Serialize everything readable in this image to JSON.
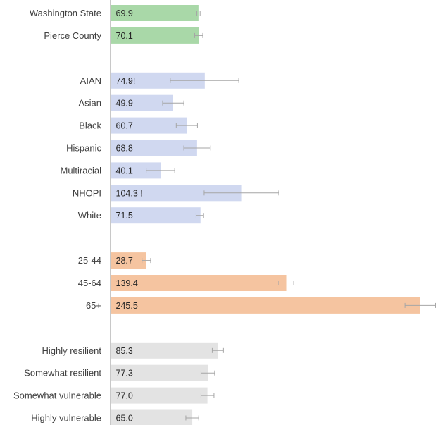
{
  "chart_data": {
    "type": "bar",
    "orientation": "horizontal",
    "title": "",
    "xlabel": "",
    "ylabel": "",
    "xlim": [
      0,
      255
    ],
    "grid": false,
    "legend": "none",
    "groups": [
      {
        "color": "#a9d8a8",
        "bars": [
          {
            "category": "Washington State",
            "value": 69.9,
            "label": "69.9",
            "error": [
              68.6,
              71.2
            ]
          },
          {
            "category": "Pierce County",
            "value": 70.1,
            "label": "70.1",
            "error": [
              66.9,
              73.3
            ]
          }
        ]
      },
      {
        "color": "#d0d8f0",
        "bars": [
          {
            "category": "AIAN",
            "value": 74.9,
            "label": "74.9!",
            "error": [
              47.6,
              101.8
            ]
          },
          {
            "category": "Asian",
            "value": 49.9,
            "label": "49.9",
            "error": [
              41.5,
              58.3
            ]
          },
          {
            "category": "Black",
            "value": 60.7,
            "label": "60.7",
            "error": [
              52.3,
              69.1
            ]
          },
          {
            "category": "Hispanic",
            "value": 68.8,
            "label": "68.8",
            "error": [
              58.3,
              79.3
            ]
          },
          {
            "category": "Multiracial",
            "value": 40.1,
            "label": "40.1",
            "error": [
              28.5,
              51.1
            ]
          },
          {
            "category": "NHOPI",
            "value": 104.3,
            "label": "104.3 !",
            "error": [
              74.4,
              133.5
            ]
          },
          {
            "category": "White",
            "value": 71.5,
            "label": "71.5",
            "error": [
              68.0,
              74.0
            ]
          }
        ]
      },
      {
        "color": "#f5c4a0",
        "bars": [
          {
            "category": "25-44",
            "value": 28.7,
            "label": "28.7",
            "error": [
              25.2,
              32.0
            ]
          },
          {
            "category": "45-64",
            "value": 139.4,
            "label": "139.4",
            "error": [
              133.5,
              145.3
            ]
          },
          {
            "category": "65+",
            "value": 245.5,
            "label": "245.5",
            "error": [
              233.4,
              257.6
            ]
          }
        ]
      },
      {
        "color": "#e3e3e3",
        "bars": [
          {
            "category": "Highly resilient",
            "value": 85.3,
            "label": "85.3",
            "error": [
              80.8,
              89.7
            ]
          },
          {
            "category": "Somewhat resilient",
            "value": 77.3,
            "label": "77.3",
            "error": [
              71.9,
              82.7
            ]
          },
          {
            "category": "Somewhat vulnerable",
            "value": 77.0,
            "label": "77.0",
            "error": [
              71.9,
              82.2
            ]
          },
          {
            "category": "Highly vulnerable",
            "value": 65.0,
            "label": "65.0",
            "error": [
              59.9,
              70.1
            ]
          }
        ]
      }
    ],
    "error_bar_color": "#a6a6a6",
    "axis_color": "#c8c8c8"
  }
}
